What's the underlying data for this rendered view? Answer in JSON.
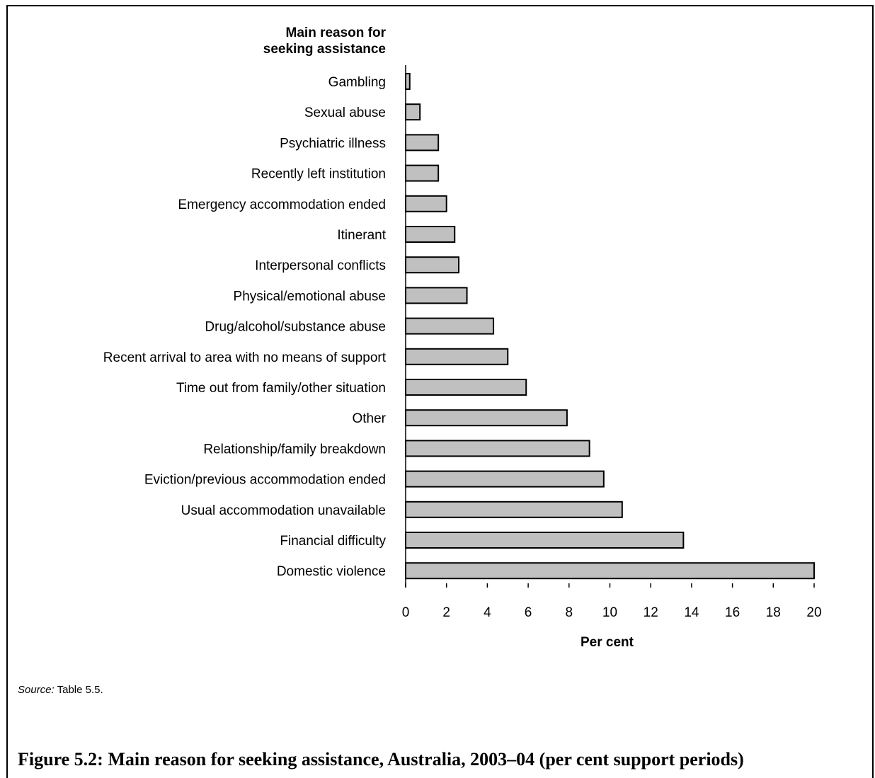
{
  "caption": "Figure 5.2: Main reason for seeking assistance, Australia, 2003–04 (per cent support periods)",
  "source": {
    "label": "Source:",
    "text": " Table 5.5."
  },
  "chart_data": {
    "type": "bar",
    "orientation": "horizontal",
    "category_title": [
      "Main reason for",
      "seeking assistance"
    ],
    "xlabel": "Per cent",
    "xlim": [
      0,
      20
    ],
    "xticks": [
      0,
      2,
      4,
      6,
      8,
      10,
      12,
      14,
      16,
      18,
      20
    ],
    "categories": [
      "Gambling",
      "Sexual abuse",
      "Psychiatric illness",
      "Recently left institution",
      "Emergency accommodation ended",
      "Itinerant",
      "Interpersonal conflicts",
      "Physical/emotional abuse",
      "Drug/alcohol/substance abuse",
      "Recent arrival to area with no means of support",
      "Time out from family/other situation",
      "Other",
      "Relationship/family breakdown",
      "Eviction/previous accommodation ended",
      "Usual accommodation unavailable",
      "Financial difficulty",
      "Domestic violence"
    ],
    "values": [
      0.2,
      0.7,
      1.6,
      1.6,
      2.0,
      2.4,
      2.6,
      3.0,
      4.3,
      5.0,
      5.9,
      7.9,
      9.0,
      9.7,
      10.6,
      13.6,
      20.0
    ],
    "bar_color": "#c0c0c0",
    "bar_stroke": "#000000",
    "grid": false,
    "legend": "none"
  }
}
